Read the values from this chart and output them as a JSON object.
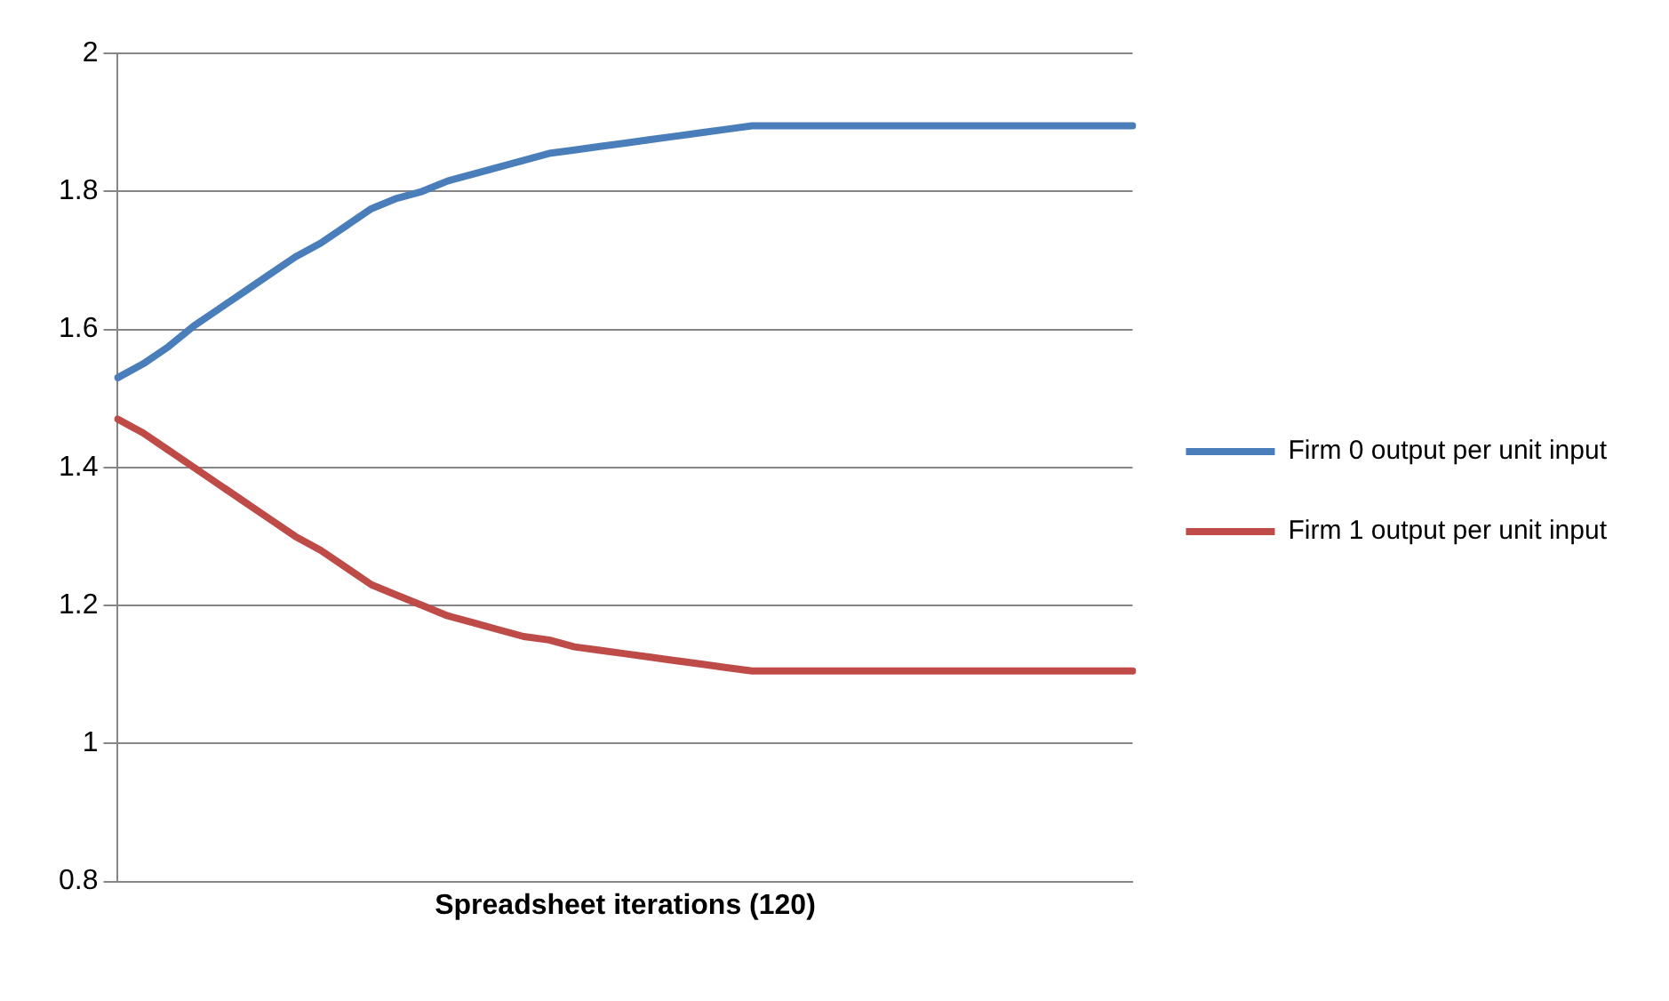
{
  "chart_data": {
    "type": "line",
    "xlabel": "Spreadsheet iterations (120)",
    "categories": [
      null,
      null,
      null,
      null,
      null,
      null,
      null,
      null,
      null,
      null,
      null,
      null,
      null,
      null,
      null,
      null,
      null,
      null,
      null,
      null,
      null,
      null,
      null,
      null,
      null,
      null,
      null,
      null,
      null,
      null,
      null,
      null,
      null,
      null,
      null,
      null,
      null,
      null,
      null,
      null,
      null
    ],
    "series": [
      {
        "name": "Firm 0 output per unit input",
        "color": "#4a7ebb",
        "values": [
          1.53,
          1.55,
          1.575,
          1.605,
          1.63,
          1.655,
          1.68,
          1.705,
          1.725,
          1.75,
          1.775,
          1.79,
          1.8,
          1.815,
          1.825,
          1.835,
          1.845,
          1.855,
          1.86,
          1.865,
          1.87,
          1.875,
          1.88,
          1.885,
          1.89,
          1.895,
          1.895,
          1.895,
          1.895,
          1.895,
          1.895,
          1.895,
          1.895,
          1.895,
          1.895,
          1.895,
          1.895,
          1.895,
          1.895,
          1.895,
          1.895
        ]
      },
      {
        "name": "Firm 1 output per unit input",
        "color": "#be4b48",
        "values": [
          1.47,
          1.45,
          1.425,
          1.4,
          1.375,
          1.35,
          1.325,
          1.3,
          1.28,
          1.255,
          1.23,
          1.215,
          1.2,
          1.185,
          1.175,
          1.165,
          1.155,
          1.15,
          1.14,
          1.135,
          1.13,
          1.125,
          1.12,
          1.115,
          1.11,
          1.105,
          1.105,
          1.105,
          1.105,
          1.105,
          1.105,
          1.105,
          1.105,
          1.105,
          1.105,
          1.105,
          1.105,
          1.105,
          1.105,
          1.105,
          1.105
        ]
      }
    ],
    "ylim": [
      0.8,
      2
    ],
    "yticks": [
      0.8,
      1,
      1.2,
      1.4,
      1.6,
      1.8,
      2
    ],
    "grid": "y",
    "legend": "right",
    "marker": "none",
    "line_style": "solid",
    "tick_labels": "y"
  }
}
